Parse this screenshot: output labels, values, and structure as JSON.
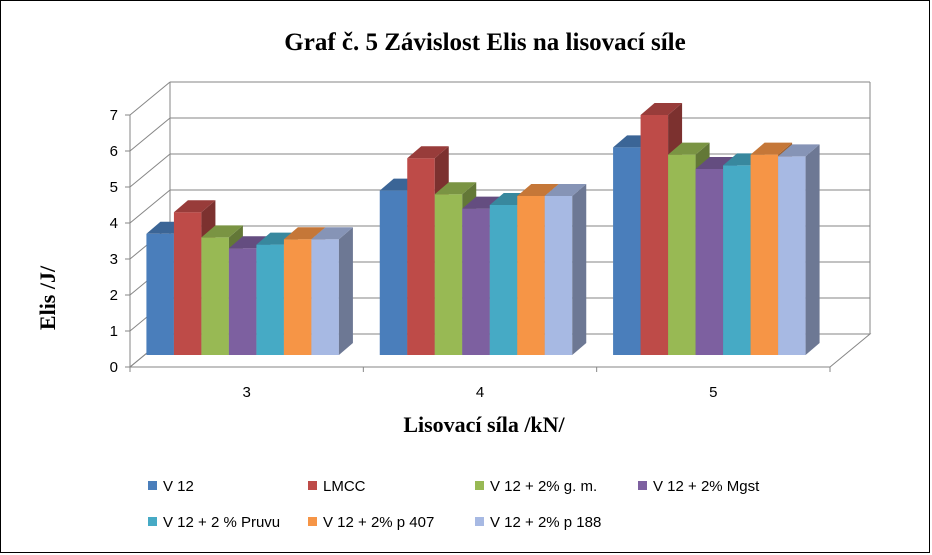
{
  "chart_data": {
    "type": "bar",
    "title": "Graf č. 5  Závislost Elis na lisovací síle",
    "xlabel": "Lisovací síla /kN/",
    "ylabel": "Elis /J/",
    "categories": [
      "3",
      "4",
      "5"
    ],
    "ylim": [
      0,
      7
    ],
    "yticks": [
      "0",
      "1",
      "2",
      "3",
      "4",
      "5",
      "6",
      "7"
    ],
    "grid": true,
    "legend_position": "bottom",
    "series": [
      {
        "name": "V 12",
        "color": "#4a7ebb",
        "values": [
          3.7,
          4.9,
          6.1
        ]
      },
      {
        "name": "LMCC",
        "color": "#be4b48",
        "values": [
          4.3,
          5.8,
          7.0
        ]
      },
      {
        "name": "V 12 + 2% g. m.",
        "color": "#98b954",
        "values": [
          3.6,
          4.8,
          5.9
        ]
      },
      {
        "name": "V 12 + 2% Mgst",
        "color": "#7d60a0",
        "values": [
          3.3,
          4.4,
          5.5
        ]
      },
      {
        "name": "V 12 + 2 % Pruvu",
        "color": "#46aac5",
        "values": [
          3.4,
          4.5,
          5.6
        ]
      },
      {
        "name": "V 12 + 2% p 407",
        "color": "#f69546",
        "values": [
          3.55,
          4.75,
          5.9
        ]
      },
      {
        "name": "V 12 + 2% p 188",
        "color": "#a7b9e3",
        "values": [
          3.55,
          4.75,
          5.85
        ]
      }
    ]
  }
}
